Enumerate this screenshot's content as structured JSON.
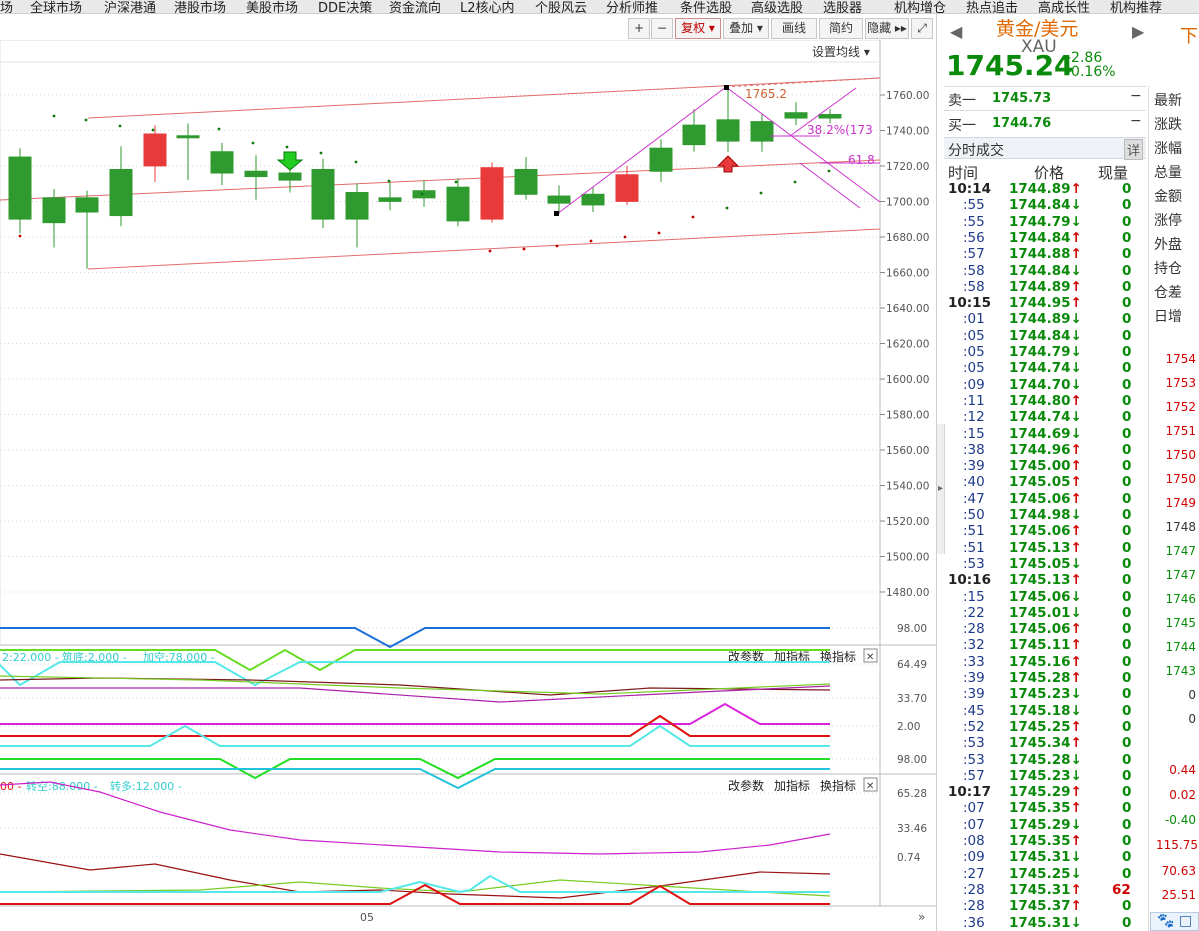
{
  "menubar": {
    "items": [
      "场",
      "全球市场",
      "沪深港通",
      "港股市场",
      "美股市场",
      "DDE决策",
      "资金流向",
      "L2核心内",
      "个股风云",
      "分析师推",
      "条件选股",
      "高级选股",
      "选股器",
      "机构增仓",
      "热点追击",
      "高成长性",
      "机构推荐"
    ]
  },
  "toolbar": {
    "plus": "+",
    "minus": "−",
    "fuquan": "复权 ▾",
    "diejia": "叠加 ▾",
    "huaxian": "画线",
    "jianyue": "简约",
    "yincang": "隐藏 ▸▸",
    "fullscreen": "⤢",
    "set_ma": "设置均线 ▾"
  },
  "colors": {
    "up": "#e83a3a",
    "down": "#2f9a2f",
    "price_green": "#0a8a0a",
    "price_red": "#d00000",
    "axis_text": "#555555"
  },
  "main_chart": {
    "y_ticks": [
      "1760.00",
      "1740.00",
      "1720.00",
      "1700.00",
      "1680.00",
      "1660.00",
      "1640.00",
      "1620.00",
      "1600.00",
      "1580.00",
      "1560.00",
      "1540.00",
      "1520.00",
      "1500.00",
      "1480.00"
    ],
    "annotation_high": "1765.2",
    "fib_382": "38.2%(173",
    "fib_618": "61.8"
  },
  "ind1": {
    "legend_prefix": "2:22.000 -",
    "legend_a": "筑底:2.000 -",
    "legend_b": "加空:78.000 -",
    "btn_params": "改参数",
    "btn_add": "加指标",
    "btn_swap": "换指标",
    "close": "✕",
    "y_ticks": [
      "98.00",
      "64.49",
      "33.70",
      "2.00"
    ]
  },
  "ind2": {
    "legend_prefix": "00 -",
    "legend_a": "转空:88.000 -",
    "legend_b": "转多:12.000 -",
    "btn_params": "改参数",
    "btn_add": "加指标",
    "btn_swap": "换指标",
    "close": "✕",
    "y_ticks": [
      "98.00",
      "65.28",
      "33.46",
      "0.74"
    ],
    "x_label": "05"
  },
  "quote": {
    "name": "黄金/美元",
    "code": "XAU",
    "price": "1745.24",
    "change": "-2.86",
    "change_pct": "-0.16%",
    "nav_left": "◀",
    "nav_right": "▶",
    "side_tab": "下"
  },
  "orderbook": {
    "sell_label": "卖一",
    "sell_price": "1745.73",
    "buy_label": "买一",
    "buy_price": "1744.76",
    "dash": "−"
  },
  "ticks": {
    "title": "分时成交",
    "detail": "详",
    "h_time": "时间",
    "h_price": "价格",
    "h_vol": "现量",
    "rows": [
      [
        "10:14",
        "1744.89",
        "↑",
        "0"
      ],
      [
        ":55",
        "1744.84",
        "↓",
        "0"
      ],
      [
        ":55",
        "1744.79",
        "↓",
        "0"
      ],
      [
        ":56",
        "1744.84",
        "↑",
        "0"
      ],
      [
        ":57",
        "1744.88",
        "↑",
        "0"
      ],
      [
        ":58",
        "1744.84",
        "↓",
        "0"
      ],
      [
        ":58",
        "1744.89",
        "↑",
        "0"
      ],
      [
        "10:15",
        "1744.95",
        "↑",
        "0"
      ],
      [
        ":01",
        "1744.89",
        "↓",
        "0"
      ],
      [
        ":05",
        "1744.84",
        "↓",
        "0"
      ],
      [
        ":05",
        "1744.79",
        "↓",
        "0"
      ],
      [
        ":05",
        "1744.74",
        "↓",
        "0"
      ],
      [
        ":09",
        "1744.70",
        "↓",
        "0"
      ],
      [
        ":11",
        "1744.80",
        "↑",
        "0"
      ],
      [
        ":12",
        "1744.74",
        "↓",
        "0"
      ],
      [
        ":15",
        "1744.69",
        "↓",
        "0"
      ],
      [
        ":38",
        "1744.96",
        "↑",
        "0"
      ],
      [
        ":39",
        "1745.00",
        "↑",
        "0"
      ],
      [
        ":40",
        "1745.05",
        "↑",
        "0"
      ],
      [
        ":47",
        "1745.06",
        "↑",
        "0"
      ],
      [
        ":50",
        "1744.98",
        "↓",
        "0"
      ],
      [
        ":51",
        "1745.06",
        "↑",
        "0"
      ],
      [
        ":51",
        "1745.13",
        "↑",
        "0"
      ],
      [
        ":53",
        "1745.05",
        "↓",
        "0"
      ],
      [
        "10:16",
        "1745.13",
        "↑",
        "0"
      ],
      [
        ":15",
        "1745.06",
        "↓",
        "0"
      ],
      [
        ":22",
        "1745.01",
        "↓",
        "0"
      ],
      [
        ":28",
        "1745.06",
        "↑",
        "0"
      ],
      [
        ":32",
        "1745.11",
        "↑",
        "0"
      ],
      [
        ":33",
        "1745.16",
        "↑",
        "0"
      ],
      [
        ":39",
        "1745.28",
        "↑",
        "0"
      ],
      [
        ":39",
        "1745.23",
        "↓",
        "0"
      ],
      [
        ":45",
        "1745.18",
        "↓",
        "0"
      ],
      [
        ":52",
        "1745.25",
        "↑",
        "0"
      ],
      [
        ":53",
        "1745.34",
        "↑",
        "0"
      ],
      [
        ":53",
        "1745.28",
        "↓",
        "0"
      ],
      [
        ":57",
        "1745.23",
        "↓",
        "0"
      ],
      [
        "10:17",
        "1745.29",
        "↑",
        "0"
      ],
      [
        ":07",
        "1745.35",
        "↑",
        "0"
      ],
      [
        ":07",
        "1745.29",
        "↓",
        "0"
      ],
      [
        ":08",
        "1745.35",
        "↑",
        "0"
      ],
      [
        ":09",
        "1745.31",
        "↓",
        "0"
      ],
      [
        ":27",
        "1745.25",
        "↓",
        "0"
      ],
      [
        ":28",
        "1745.31",
        "↑",
        "62"
      ],
      [
        ":28",
        "1745.37",
        "↑",
        "0"
      ],
      [
        ":36",
        "1745.31",
        "↓",
        "0"
      ]
    ]
  },
  "stats": {
    "labels": [
      "最新",
      "涨跌",
      "涨幅",
      "总量",
      "金额",
      "涨停",
      "外盘",
      "持仓",
      "仓差",
      "日增"
    ],
    "values": [
      [
        "1754",
        "#d00000"
      ],
      [
        "1753",
        "#d00000"
      ],
      [
        "1752",
        "#d00000"
      ],
      [
        "1751",
        "#d00000"
      ],
      [
        "1750",
        "#d00000"
      ],
      [
        "1750",
        "#d00000"
      ],
      [
        "1749",
        "#d00000"
      ],
      [
        "1748",
        "#333333"
      ],
      [
        "1747",
        "#0a8a0a"
      ],
      [
        "1747",
        "#0a8a0a"
      ],
      [
        "1746",
        "#0a8a0a"
      ],
      [
        "1745",
        "#0a8a0a"
      ],
      [
        "1744",
        "#0a8a0a"
      ],
      [
        "1743",
        "#0a8a0a"
      ],
      [
        "0",
        "#333333"
      ],
      [
        "0",
        "#333333"
      ],
      [
        "0.44",
        "#d00000"
      ],
      [
        "0.02",
        "#d00000"
      ],
      [
        "-0.40",
        "#0a8a0a"
      ],
      [
        "115.75",
        "#d00000"
      ],
      [
        "70.63",
        "#d00000"
      ],
      [
        "25.51",
        "#d00000"
      ]
    ]
  }
}
